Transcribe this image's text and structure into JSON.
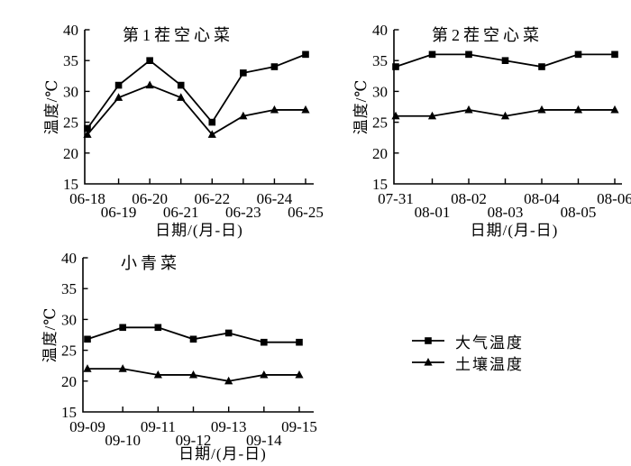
{
  "figure": {
    "background": "#ffffff",
    "ink_color": "#000000"
  },
  "legend": {
    "items": [
      {
        "marker": "square",
        "label": "大气温度"
      },
      {
        "marker": "triangle",
        "label": "土壤温度"
      }
    ]
  },
  "chart_data": {
    "type": "line",
    "ylabel": "温度/℃",
    "xlabel": "日期/(月-日)",
    "ylim": [
      15,
      40
    ],
    "yticks": [
      15,
      20,
      25,
      30,
      35,
      40
    ],
    "grid": false,
    "legend_position": "bottom-right-outside",
    "charts": [
      {
        "title": "第1茬空心菜",
        "categories": [
          "06-18",
          "06-19",
          "06-20",
          "06-21",
          "06-22",
          "06-23",
          "06-24",
          "06-25"
        ],
        "series": [
          {
            "name": "大气温度",
            "marker": "square",
            "values": [
              24,
              31,
              35,
              31,
              25,
              33,
              34,
              36
            ]
          },
          {
            "name": "土壤温度",
            "marker": "triangle",
            "values": [
              23,
              29,
              31,
              29,
              23,
              26,
              27,
              27
            ]
          }
        ]
      },
      {
        "title": "第2茬空心菜",
        "categories": [
          "07-31",
          "08-01",
          "08-02",
          "08-03",
          "08-04",
          "08-05",
          "08-06"
        ],
        "series": [
          {
            "name": "大气温度",
            "marker": "square",
            "values": [
              34,
              36,
              36,
              35,
              34,
              36,
              36
            ]
          },
          {
            "name": "土壤温度",
            "marker": "triangle",
            "values": [
              26,
              26,
              27,
              26,
              27,
              27,
              27
            ]
          }
        ]
      },
      {
        "title": "小青菜",
        "categories": [
          "09-09",
          "09-10",
          "09-11",
          "09-12",
          "09-13",
          "09-14",
          "09-15"
        ],
        "series": [
          {
            "name": "大气温度",
            "marker": "square",
            "values": [
              26.8,
              28.7,
              28.7,
              26.8,
              27.8,
              26.3,
              26.3
            ]
          },
          {
            "name": "土壤温度",
            "marker": "triangle",
            "values": [
              22,
              22,
              21,
              21,
              20,
              21,
              21
            ]
          }
        ]
      }
    ]
  }
}
